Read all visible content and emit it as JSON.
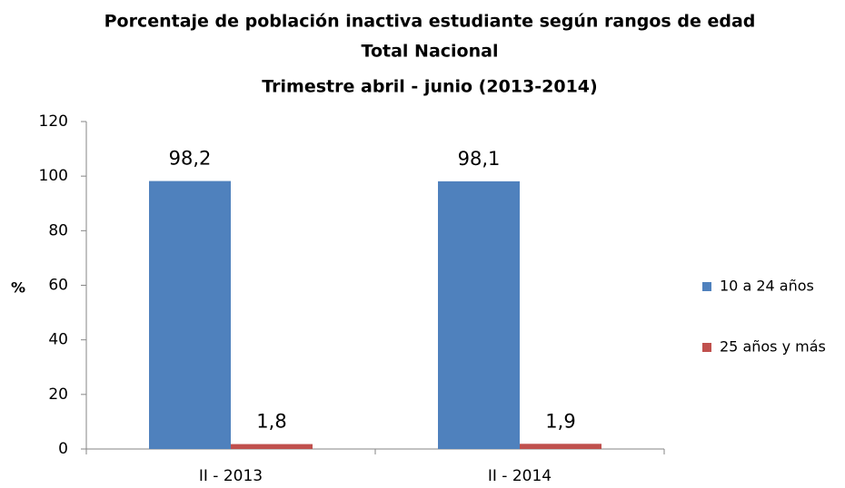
{
  "chart_data": {
    "type": "bar",
    "title": [
      "Porcentaje de población inactiva estudiante según rangos de edad",
      "Total Nacional",
      "Trimestre abril - junio (2013-2014)"
    ],
    "y_label": "%",
    "categories": [
      "II - 2013",
      "II - 2014"
    ],
    "series": [
      {
        "name": "10 a 24 años",
        "color": "#4f81bd",
        "values": [
          98.2,
          98.1
        ],
        "value_labels": [
          "98,2",
          "98,1"
        ]
      },
      {
        "name": "25 años y más",
        "color": "#c0504d",
        "values": [
          1.8,
          1.9
        ],
        "value_labels": [
          "1,8",
          "1,9"
        ]
      }
    ],
    "ylim": [
      0,
      120
    ],
    "yticks": [
      0,
      20,
      40,
      60,
      80,
      100,
      120
    ],
    "grid": false,
    "legend": "right"
  }
}
